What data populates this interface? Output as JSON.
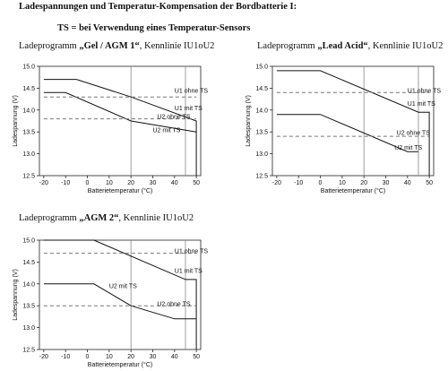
{
  "document": {
    "title": "Ladespannungen und Temperatur-Kompensation der Bordbatterie I:",
    "note": "TS = bei Verwendung eines Temperatur-Sensors"
  },
  "chart_data": [
    {
      "type": "line",
      "title_prefix": "Ladeprogramm ",
      "title_bold": "„Gel / AGM 1“",
      "title_suffix": ", Kennlinie IU1oU2",
      "xlabel": "Batterietemperatur (°C)",
      "ylabel": "Ladespannung (V)",
      "xlim": [
        -22,
        52
      ],
      "ylim": [
        12.5,
        15.0
      ],
      "x_ticks": [
        -20,
        -10,
        0,
        10,
        20,
        30,
        40,
        50
      ],
      "y_ticks": [
        12.5,
        13.0,
        13.5,
        14.0,
        14.5,
        15.0
      ],
      "grid": false,
      "vlines": [
        20,
        45
      ],
      "series": [
        {
          "name": "U1 mit TS",
          "style": "solid",
          "x": [
            -20,
            -5,
            20,
            50,
            50
          ],
          "y": [
            14.7,
            14.7,
            14.3,
            13.75,
            12.5
          ],
          "label_pos": [
            40,
            14.05
          ]
        },
        {
          "name": "U2 mit TS",
          "style": "solid",
          "x": [
            -20,
            -10,
            20,
            50
          ],
          "y": [
            14.4,
            14.4,
            13.75,
            13.5
          ],
          "label_pos": [
            30,
            13.55
          ]
        },
        {
          "name": "U1 ohne TS",
          "style": "dashed",
          "x": [
            -20,
            50
          ],
          "y": [
            14.3,
            14.3
          ],
          "label_pos": [
            40,
            14.45
          ]
        },
        {
          "name": "U2 ohne TS",
          "style": "dashed",
          "x": [
            -20,
            50
          ],
          "y": [
            13.8,
            13.8
          ],
          "label_pos": [
            32,
            13.85
          ]
        }
      ]
    },
    {
      "type": "line",
      "title_prefix": "Ladeprogramm ",
      "title_bold": "„Lead Acid“",
      "title_suffix": ",  Kennlinie IU1oU2",
      "xlabel": "Batterietemperatur (°C)",
      "ylabel": "Ladespannung (V)",
      "xlim": [
        -22,
        52
      ],
      "ylim": [
        12.5,
        15.0
      ],
      "x_ticks": [
        -20,
        -10,
        0,
        10,
        20,
        30,
        40,
        50
      ],
      "y_ticks": [
        12.5,
        13.0,
        13.5,
        14.0,
        14.5,
        15.0
      ],
      "grid": false,
      "vlines": [
        20,
        45
      ],
      "series": [
        {
          "name": "U1 mit TS",
          "style": "solid",
          "x": [
            -20,
            0,
            45,
            50,
            50
          ],
          "y": [
            14.9,
            14.9,
            13.95,
            13.95,
            12.5
          ],
          "label_pos": [
            40,
            14.15
          ]
        },
        {
          "name": "U2 mit TS",
          "style": "solid",
          "x": [
            -20,
            0,
            40,
            45
          ],
          "y": [
            13.9,
            13.9,
            13.05,
            13.05
          ],
          "label_pos": [
            34,
            13.15
          ]
        },
        {
          "name": "U1 ohne TS",
          "style": "dashed",
          "x": [
            -20,
            50
          ],
          "y": [
            14.4,
            14.4
          ],
          "label_pos": [
            40,
            14.45
          ]
        },
        {
          "name": "U2 ohne TS",
          "style": "dashed",
          "x": [
            -20,
            50
          ],
          "y": [
            13.4,
            13.4
          ],
          "label_pos": [
            35,
            13.48
          ]
        }
      ]
    },
    {
      "type": "line",
      "title_prefix": "Ladeprogramm ",
      "title_bold": "„AGM 2“",
      "title_suffix": ", Kennlinie IU1oU2",
      "xlabel": "Batterietemperatur (°C)",
      "ylabel": "Ladespannung (V)",
      "xlim": [
        -22,
        52
      ],
      "ylim": [
        12.5,
        15.0
      ],
      "x_ticks": [
        -20,
        -10,
        0,
        10,
        20,
        30,
        40,
        50
      ],
      "y_ticks": [
        12.5,
        13.0,
        13.5,
        14.0,
        14.5,
        15.0
      ],
      "grid": false,
      "vlines": [
        20,
        45
      ],
      "series": [
        {
          "name": "U1 mit TS",
          "style": "solid",
          "x": [
            -20,
            3,
            45,
            50,
            50
          ],
          "y": [
            15.0,
            15.0,
            14.1,
            14.1,
            12.5
          ],
          "label_pos": [
            40,
            14.3
          ]
        },
        {
          "name": "U2 mit TS",
          "style": "solid",
          "x": [
            -20,
            3,
            20,
            40,
            50
          ],
          "y": [
            14.0,
            14.0,
            13.5,
            13.2,
            13.2
          ],
          "label_pos": [
            10,
            13.95
          ]
        },
        {
          "name": "U1 ohne TS",
          "style": "dashed",
          "x": [
            -20,
            50
          ],
          "y": [
            14.7,
            14.7
          ],
          "label_pos": [
            40,
            14.75
          ]
        },
        {
          "name": "U2 ohne TS",
          "style": "dashed",
          "x": [
            -20,
            50
          ],
          "y": [
            13.5,
            13.5
          ],
          "label_pos": [
            32,
            13.55
          ]
        }
      ]
    }
  ]
}
